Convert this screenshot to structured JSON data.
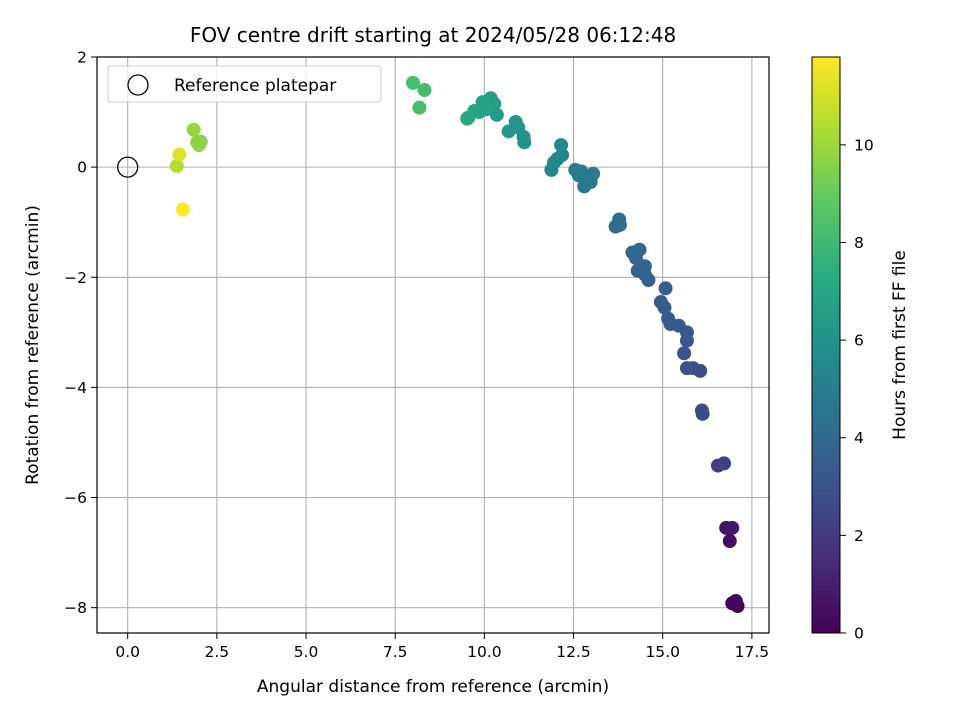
{
  "chart_data": {
    "type": "scatter",
    "title": "FOV centre drift starting at 2024/05/28 06:12:48",
    "xlabel": "Angular distance from reference (arcmin)",
    "ylabel": "Rotation from reference (arcmin)",
    "xlim": [
      -0.86,
      17.98
    ],
    "ylim": [
      -8.46,
      2.0
    ],
    "xticks": [
      0.0,
      2.5,
      5.0,
      7.5,
      10.0,
      12.5,
      15.0,
      17.5
    ],
    "xtick_labels": [
      "0.0",
      "2.5",
      "5.0",
      "7.5",
      "10.0",
      "12.5",
      "15.0",
      "17.5"
    ],
    "yticks": [
      -8,
      -6,
      -4,
      -2,
      0,
      2
    ],
    "ytick_labels": [
      "−8",
      "−6",
      "−4",
      "−2",
      "0",
      "2"
    ],
    "grid": true,
    "legend": {
      "position": "top-left",
      "entries": [
        "Reference platepar"
      ]
    },
    "reference_point": {
      "x": 0.0,
      "y": 0.0
    },
    "colorbar": {
      "label": "Hours from first FF file",
      "colormap": "viridis",
      "range": [
        0,
        11.8
      ],
      "ticks": [
        0,
        2,
        4,
        6,
        8,
        10
      ],
      "tick_labels": [
        "0",
        "2",
        "4",
        "6",
        "8",
        "10"
      ]
    },
    "points": [
      {
        "x": 17.1,
        "y": -7.97,
        "h": 0.0
      },
      {
        "x": 16.95,
        "y": -7.92,
        "h": 0.1
      },
      {
        "x": 17.05,
        "y": -7.88,
        "h": 0.2
      },
      {
        "x": 16.88,
        "y": -6.79,
        "h": 0.4
      },
      {
        "x": 16.78,
        "y": -6.55,
        "h": 0.6
      },
      {
        "x": 16.95,
        "y": -6.55,
        "h": 0.7
      },
      {
        "x": 16.55,
        "y": -5.42,
        "h": 2.1
      },
      {
        "x": 16.72,
        "y": -5.38,
        "h": 2.2
      },
      {
        "x": 16.12,
        "y": -4.48,
        "h": 2.6
      },
      {
        "x": 16.1,
        "y": -4.42,
        "h": 2.7
      },
      {
        "x": 15.85,
        "y": -3.65,
        "h": 2.9
      },
      {
        "x": 16.05,
        "y": -3.7,
        "h": 2.85
      },
      {
        "x": 15.68,
        "y": -3.65,
        "h": 3.0
      },
      {
        "x": 15.6,
        "y": -3.38,
        "h": 3.1
      },
      {
        "x": 15.68,
        "y": -3.15,
        "h": 3.2
      },
      {
        "x": 15.68,
        "y": -3.0,
        "h": 3.25
      },
      {
        "x": 15.45,
        "y": -2.88,
        "h": 3.3
      },
      {
        "x": 15.22,
        "y": -2.85,
        "h": 3.35
      },
      {
        "x": 15.15,
        "y": -2.75,
        "h": 3.4
      },
      {
        "x": 15.05,
        "y": -2.55,
        "h": 3.45
      },
      {
        "x": 14.95,
        "y": -2.45,
        "h": 3.5
      },
      {
        "x": 15.08,
        "y": -2.2,
        "h": 3.55
      },
      {
        "x": 14.6,
        "y": -2.05,
        "h": 3.6
      },
      {
        "x": 14.5,
        "y": -1.95,
        "h": 3.65
      },
      {
        "x": 14.3,
        "y": -1.88,
        "h": 3.7
      },
      {
        "x": 14.5,
        "y": -1.8,
        "h": 3.75
      },
      {
        "x": 14.25,
        "y": -1.65,
        "h": 3.8
      },
      {
        "x": 14.15,
        "y": -1.55,
        "h": 3.85
      },
      {
        "x": 14.35,
        "y": -1.5,
        "h": 3.9
      },
      {
        "x": 13.68,
        "y": -1.08,
        "h": 4.1
      },
      {
        "x": 13.8,
        "y": -1.05,
        "h": 4.15
      },
      {
        "x": 13.78,
        "y": -0.95,
        "h": 4.2
      },
      {
        "x": 12.8,
        "y": -0.35,
        "h": 4.6
      },
      {
        "x": 12.98,
        "y": -0.27,
        "h": 4.65
      },
      {
        "x": 12.85,
        "y": -0.2,
        "h": 4.7
      },
      {
        "x": 13.05,
        "y": -0.12,
        "h": 4.75
      },
      {
        "x": 12.65,
        "y": -0.15,
        "h": 4.8
      },
      {
        "x": 12.55,
        "y": -0.05,
        "h": 4.85
      },
      {
        "x": 12.72,
        "y": -0.08,
        "h": 4.9
      },
      {
        "x": 12.05,
        "y": 0.15,
        "h": 5.3
      },
      {
        "x": 12.18,
        "y": 0.22,
        "h": 5.35
      },
      {
        "x": 11.88,
        "y": -0.05,
        "h": 5.4
      },
      {
        "x": 11.95,
        "y": 0.08,
        "h": 5.45
      },
      {
        "x": 12.15,
        "y": 0.4,
        "h": 5.5
      },
      {
        "x": 11.12,
        "y": 0.45,
        "h": 6.0
      },
      {
        "x": 11.1,
        "y": 0.55,
        "h": 6.05
      },
      {
        "x": 10.95,
        "y": 0.72,
        "h": 6.1
      },
      {
        "x": 10.88,
        "y": 0.82,
        "h": 6.15
      },
      {
        "x": 10.68,
        "y": 0.65,
        "h": 6.2
      },
      {
        "x": 10.35,
        "y": 0.95,
        "h": 6.4
      },
      {
        "x": 10.15,
        "y": 1.15,
        "h": 6.5
      },
      {
        "x": 10.28,
        "y": 1.15,
        "h": 6.55
      },
      {
        "x": 10.18,
        "y": 1.25,
        "h": 6.6
      },
      {
        "x": 10.05,
        "y": 1.05,
        "h": 6.65
      },
      {
        "x": 9.98,
        "y": 1.1,
        "h": 6.7
      },
      {
        "x": 9.95,
        "y": 1.18,
        "h": 6.75
      },
      {
        "x": 9.85,
        "y": 1.0,
        "h": 6.8
      },
      {
        "x": 9.72,
        "y": 1.02,
        "h": 6.9
      },
      {
        "x": 9.55,
        "y": 0.9,
        "h": 7.0
      },
      {
        "x": 9.52,
        "y": 0.88,
        "h": 7.05
      },
      {
        "x": 8.0,
        "y": 1.53,
        "h": 8.2
      },
      {
        "x": 8.32,
        "y": 1.4,
        "h": 8.15
      },
      {
        "x": 8.18,
        "y": 1.08,
        "h": 8.25
      },
      {
        "x": 2.05,
        "y": 0.46,
        "h": 9.6
      },
      {
        "x": 2.0,
        "y": 0.4,
        "h": 9.7
      },
      {
        "x": 1.95,
        "y": 0.45,
        "h": 9.65
      },
      {
        "x": 1.85,
        "y": 0.68,
        "h": 9.9
      },
      {
        "x": 1.38,
        "y": 0.02,
        "h": 10.4
      },
      {
        "x": 1.45,
        "y": 0.23,
        "h": 11.2
      },
      {
        "x": 1.55,
        "y": -0.77,
        "h": 11.8
      }
    ]
  }
}
